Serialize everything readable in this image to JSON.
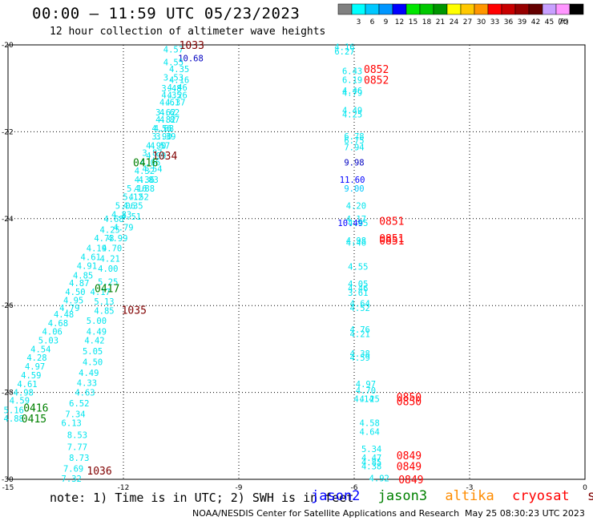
{
  "title": "00:00 – 11:59 UTC 05/23/2023",
  "subtitle": "12 hour collection of altimeter wave heights",
  "colorbar": {
    "unit": "(ft)",
    "bins": [
      {
        "label": "",
        "color": "#808080"
      },
      {
        "label": "3",
        "color": "#00ffff"
      },
      {
        "label": "6",
        "color": "#00c8ff"
      },
      {
        "label": "9",
        "color": "#0096ff"
      },
      {
        "label": "12",
        "color": "#0000ff"
      },
      {
        "label": "15",
        "color": "#00e600"
      },
      {
        "label": "18",
        "color": "#00c800"
      },
      {
        "label": "21",
        "color": "#009600"
      },
      {
        "label": "24",
        "color": "#ffff00"
      },
      {
        "label": "27",
        "color": "#ffc800"
      },
      {
        "label": "30",
        "color": "#ff9600"
      },
      {
        "label": "33",
        "color": "#ff0000"
      },
      {
        "label": "36",
        "color": "#c80000"
      },
      {
        "label": "39",
        "color": "#960000"
      },
      {
        "label": "42",
        "color": "#640000"
      },
      {
        "label": "45",
        "color": "#c8a0ff"
      },
      {
        "label": "70",
        "color": "#ff96ff"
      },
      {
        "label": "",
        "color": "#000000"
      }
    ]
  },
  "axes": {
    "x_ticks": [
      "-15",
      "-12",
      "-9",
      "-6",
      "-3",
      "0"
    ],
    "y_ticks": [
      "-20",
      "-22",
      "-24",
      "-26",
      "-28",
      "-30"
    ],
    "xlim": [
      -15,
      0
    ],
    "ylim": [
      -30,
      -20
    ]
  },
  "note": "note: 1) Time is in UTC; 2) SWH is in feet",
  "satellites": [
    {
      "name": "jason2",
      "color": "#0000ff"
    },
    {
      "name": "jason3",
      "color": "#008000"
    },
    {
      "name": "altika",
      "color": "#ff8c00"
    },
    {
      "name": "cryosat",
      "color": "#ff0000"
    },
    {
      "name": "s3a",
      "color": "#800000"
    }
  ],
  "footer_left": "NOAA/NESDIS Center for Satellite Applications and Research",
  "footer_right": "May 25 08:30:23 UTC 2023",
  "chart_data": {
    "type": "scatter",
    "xlim": [
      -15,
      0
    ],
    "ylim": [
      -30,
      -20
    ],
    "grid": true,
    "points": [
      {
        "x": -10.7,
        "y": -20.1,
        "text": "4.57",
        "color": "#00e5ee"
      },
      {
        "x": -10.25,
        "y": -20.3,
        "text": "10.68",
        "color": "#0000c0"
      },
      {
        "x": -10.7,
        "y": -20.4,
        "text": "4.55",
        "color": "#00e5ee"
      },
      {
        "x": -10.55,
        "y": -20.55,
        "text": "4.35",
        "color": "#00e5ee"
      },
      {
        "x": -10.7,
        "y": -20.75,
        "text": "3.53",
        "color": "#00e5ee"
      },
      {
        "x": -10.55,
        "y": -20.8,
        "text": "4.16",
        "color": "#00e5ee"
      },
      {
        "x": -10.75,
        "y": -21.0,
        "text": "3.48",
        "color": "#00e5ee"
      },
      {
        "x": -10.6,
        "y": -20.98,
        "text": "4.46",
        "color": "#00e5ee"
      },
      {
        "x": -10.75,
        "y": -21.15,
        "text": "4.35",
        "color": "#00e5ee"
      },
      {
        "x": -10.6,
        "y": -21.15,
        "text": "4.26",
        "color": "#00e5ee"
      },
      {
        "x": -10.8,
        "y": -21.32,
        "text": "4.61",
        "color": "#00e5ee"
      },
      {
        "x": -10.65,
        "y": -21.32,
        "text": "4.37",
        "color": "#00e5ee"
      },
      {
        "x": -10.9,
        "y": -21.55,
        "text": "3.62",
        "color": "#00e5ee"
      },
      {
        "x": -10.8,
        "y": -21.55,
        "text": "4.62",
        "color": "#00e5ee"
      },
      {
        "x": -10.9,
        "y": -21.72,
        "text": "4.82",
        "color": "#00e5ee"
      },
      {
        "x": -10.8,
        "y": -21.72,
        "text": "4.87",
        "color": "#00e5ee"
      },
      {
        "x": -11.0,
        "y": -21.92,
        "text": "4.56",
        "color": "#00e5ee"
      },
      {
        "x": -10.95,
        "y": -21.92,
        "text": "4.68",
        "color": "#00e5ee"
      },
      {
        "x": -11.0,
        "y": -22.1,
        "text": "3.90",
        "color": "#00e5ee"
      },
      {
        "x": -10.9,
        "y": -22.1,
        "text": "3.39",
        "color": "#00e5ee"
      },
      {
        "x": -11.15,
        "y": -22.32,
        "text": "4.90",
        "color": "#00e5ee"
      },
      {
        "x": -11.05,
        "y": -22.32,
        "text": "4.57",
        "color": "#00e5ee"
      },
      {
        "x": -11.25,
        "y": -22.48,
        "text": "3.87",
        "color": "#00e5ee"
      },
      {
        "x": -11.15,
        "y": -22.55,
        "text": "4.99",
        "color": "#00e5ee"
      },
      {
        "x": -11.3,
        "y": -22.7,
        "text": "4.06",
        "color": "#00e5ee"
      },
      {
        "x": -11.25,
        "y": -22.85,
        "text": "4.54",
        "color": "#00e5ee"
      },
      {
        "x": -11.45,
        "y": -22.9,
        "text": "4.32",
        "color": "#00e5ee"
      },
      {
        "x": -11.45,
        "y": -23.1,
        "text": "4.36",
        "color": "#00e5ee"
      },
      {
        "x": -11.35,
        "y": -23.1,
        "text": "4.83",
        "color": "#00e5ee"
      },
      {
        "x": -11.65,
        "y": -23.3,
        "text": "5.16",
        "color": "#00e5ee"
      },
      {
        "x": -11.45,
        "y": -23.3,
        "text": "4.88",
        "color": "#00e5ee"
      },
      {
        "x": -11.75,
        "y": -23.5,
        "text": "5.12",
        "color": "#00e5ee"
      },
      {
        "x": -11.6,
        "y": -23.5,
        "text": "4.52",
        "color": "#00e5ee"
      },
      {
        "x": -11.95,
        "y": -23.7,
        "text": "5.06",
        "color": "#00e5ee"
      },
      {
        "x": -11.75,
        "y": -23.7,
        "text": "4.35",
        "color": "#00e5ee"
      },
      {
        "x": -12.05,
        "y": -23.9,
        "text": "4.83",
        "color": "#00e5ee"
      },
      {
        "x": -11.8,
        "y": -23.95,
        "text": "4.51",
        "color": "#00e5ee"
      },
      {
        "x": -12.25,
        "y": -24.0,
        "text": "4.68",
        "color": "#00e5ee"
      },
      {
        "x": -12.35,
        "y": -24.25,
        "text": "4.25",
        "color": "#00e5ee"
      },
      {
        "x": -12.0,
        "y": -24.2,
        "text": "4.79",
        "color": "#00e5ee"
      },
      {
        "x": -12.5,
        "y": -24.45,
        "text": "4.73",
        "color": "#00e5ee"
      },
      {
        "x": -12.15,
        "y": -24.45,
        "text": "4.99",
        "color": "#00e5ee"
      },
      {
        "x": -12.7,
        "y": -24.68,
        "text": "4.19",
        "color": "#00e5ee"
      },
      {
        "x": -12.3,
        "y": -24.68,
        "text": "4.70",
        "color": "#00e5ee"
      },
      {
        "x": -12.85,
        "y": -24.88,
        "text": "4.61",
        "color": "#00e5ee"
      },
      {
        "x": -12.35,
        "y": -24.92,
        "text": "4.21",
        "color": "#00e5ee"
      },
      {
        "x": -12.95,
        "y": -25.08,
        "text": "4.91",
        "color": "#00e5ee"
      },
      {
        "x": -12.4,
        "y": -25.15,
        "text": "4.00",
        "color": "#00e5ee"
      },
      {
        "x": -13.05,
        "y": -25.3,
        "text": "4.85",
        "color": "#00e5ee"
      },
      {
        "x": -12.4,
        "y": -25.45,
        "text": "5.25",
        "color": "#00e5ee"
      },
      {
        "x": -13.15,
        "y": -25.48,
        "text": "4.87",
        "color": "#00e5ee"
      },
      {
        "x": -13.25,
        "y": -25.68,
        "text": "4.50",
        "color": "#00e5ee"
      },
      {
        "x": -12.6,
        "y": -25.68,
        "text": "4.17",
        "color": "#00e5ee"
      },
      {
        "x": -13.3,
        "y": -25.88,
        "text": "4.95",
        "color": "#00e5ee"
      },
      {
        "x": -12.5,
        "y": -25.9,
        "text": "5.13",
        "color": "#00e5ee"
      },
      {
        "x": -13.4,
        "y": -26.05,
        "text": "4.79",
        "color": "#00e5ee"
      },
      {
        "x": -12.5,
        "y": -26.12,
        "text": "4.85",
        "color": "#00e5ee"
      },
      {
        "x": -13.55,
        "y": -26.2,
        "text": "4.48",
        "color": "#00e5ee"
      },
      {
        "x": -12.7,
        "y": -26.35,
        "text": "5.00",
        "color": "#00e5ee"
      },
      {
        "x": -13.7,
        "y": -26.4,
        "text": "4.68",
        "color": "#00e5ee"
      },
      {
        "x": -13.85,
        "y": -26.6,
        "text": "4.06",
        "color": "#00e5ee"
      },
      {
        "x": -12.7,
        "y": -26.6,
        "text": "4.49",
        "color": "#00e5ee"
      },
      {
        "x": -13.95,
        "y": -26.8,
        "text": "5.03",
        "color": "#00e5ee"
      },
      {
        "x": -12.75,
        "y": -26.8,
        "text": "4.42",
        "color": "#00e5ee"
      },
      {
        "x": -14.15,
        "y": -27.0,
        "text": "4.54",
        "color": "#00e5ee"
      },
      {
        "x": -12.8,
        "y": -27.05,
        "text": "5.05",
        "color": "#00e5ee"
      },
      {
        "x": -14.25,
        "y": -27.2,
        "text": "4.28",
        "color": "#00e5ee"
      },
      {
        "x": -12.8,
        "y": -27.3,
        "text": "4.50",
        "color": "#00e5ee"
      },
      {
        "x": -14.3,
        "y": -27.4,
        "text": "4.97",
        "color": "#00e5ee"
      },
      {
        "x": -12.9,
        "y": -27.55,
        "text": "4.49",
        "color": "#00e5ee"
      },
      {
        "x": -14.4,
        "y": -27.6,
        "text": "4.59",
        "color": "#00e5ee"
      },
      {
        "x": -12.95,
        "y": -27.78,
        "text": "4.33",
        "color": "#00e5ee"
      },
      {
        "x": -14.5,
        "y": -27.8,
        "text": "4.61",
        "color": "#00e5ee"
      },
      {
        "x": -14.6,
        "y": -28.0,
        "text": "4.98",
        "color": "#00e5ee"
      },
      {
        "x": -13.0,
        "y": -28.0,
        "text": "4.63",
        "color": "#00e5ee"
      },
      {
        "x": -14.7,
        "y": -28.18,
        "text": "4.59",
        "color": "#00e5ee"
      },
      {
        "x": -13.15,
        "y": -28.25,
        "text": "6.52",
        "color": "#00e5ee"
      },
      {
        "x": -14.85,
        "y": -28.4,
        "text": "5.16",
        "color": "#00e5ee"
      },
      {
        "x": -13.25,
        "y": -28.5,
        "text": "7.34",
        "color": "#00e5ee"
      },
      {
        "x": -14.85,
        "y": -28.6,
        "text": "4.88",
        "color": "#00e5ee"
      },
      {
        "x": -13.35,
        "y": -28.7,
        "text": "6.13",
        "color": "#00e5ee"
      },
      {
        "x": -13.2,
        "y": -28.98,
        "text": "8.53",
        "color": "#00e5ee"
      },
      {
        "x": -13.2,
        "y": -29.25,
        "text": "7.77",
        "color": "#00e5ee"
      },
      {
        "x": -13.15,
        "y": -29.5,
        "text": "8.73",
        "color": "#00e5ee"
      },
      {
        "x": -13.3,
        "y": -29.75,
        "text": "7.69",
        "color": "#00e5ee"
      },
      {
        "x": -13.35,
        "y": -29.98,
        "text": "7.32",
        "color": "#00e5ee"
      },
      {
        "x": -6.25,
        "y": -20.05,
        "text": "4.16",
        "color": "#00e5ee"
      },
      {
        "x": -6.25,
        "y": -20.15,
        "text": "6.27",
        "color": "#00e5ee"
      },
      {
        "x": -6.05,
        "y": -20.6,
        "text": "6.43",
        "color": "#00e5ee"
      },
      {
        "x": -6.05,
        "y": -20.8,
        "text": "6.19",
        "color": "#00e5ee"
      },
      {
        "x": -6.05,
        "y": -21.05,
        "text": "4.46",
        "color": "#00e5ee"
      },
      {
        "x": -6.05,
        "y": -21.1,
        "text": "4.79",
        "color": "#00e5ee"
      },
      {
        "x": -6.05,
        "y": -21.5,
        "text": "4.49",
        "color": "#00e5ee"
      },
      {
        "x": -6.05,
        "y": -21.6,
        "text": "4.25",
        "color": "#00e5ee"
      },
      {
        "x": -6.0,
        "y": -22.1,
        "text": "6.78",
        "color": "#00e5ee"
      },
      {
        "x": -6.0,
        "y": -22.2,
        "text": "6.75",
        "color": "#00e5ee"
      },
      {
        "x": -6.0,
        "y": -22.35,
        "text": "7.94",
        "color": "#00e5ee"
      },
      {
        "x": -6.0,
        "y": -22.7,
        "text": "9.98",
        "color": "#0000c0"
      },
      {
        "x": -6.05,
        "y": -23.1,
        "text": "11.60",
        "color": "#0000ff"
      },
      {
        "x": -6.0,
        "y": -23.3,
        "text": "9.00",
        "color": "#00c8ff"
      },
      {
        "x": -5.95,
        "y": -23.7,
        "text": "4.20",
        "color": "#00e5ee"
      },
      {
        "x": -5.95,
        "y": -24.0,
        "text": "4.17",
        "color": "#00e5ee"
      },
      {
        "x": -6.1,
        "y": -24.1,
        "text": "10.49",
        "color": "#0000ff"
      },
      {
        "x": -5.9,
        "y": -24.1,
        "text": "4.45",
        "color": "#00e5ee"
      },
      {
        "x": -5.95,
        "y": -24.5,
        "text": "4.98",
        "color": "#00e5ee"
      },
      {
        "x": -5.95,
        "y": -24.55,
        "text": "4.46",
        "color": "#00e5ee"
      },
      {
        "x": -5.9,
        "y": -25.1,
        "text": "4.55",
        "color": "#00e5ee"
      },
      {
        "x": -5.9,
        "y": -25.5,
        "text": "4.05",
        "color": "#00e5ee"
      },
      {
        "x": -5.9,
        "y": -25.6,
        "text": "4.46",
        "color": "#00e5ee"
      },
      {
        "x": -5.9,
        "y": -25.7,
        "text": "3.61",
        "color": "#00e5ee"
      },
      {
        "x": -5.85,
        "y": -25.95,
        "text": "4.64",
        "color": "#00e5ee"
      },
      {
        "x": -5.85,
        "y": -26.05,
        "text": "4.52",
        "color": "#00e5ee"
      },
      {
        "x": -5.85,
        "y": -26.55,
        "text": "4.76",
        "color": "#00e5ee"
      },
      {
        "x": -5.85,
        "y": -26.65,
        "text": "4.21",
        "color": "#00e5ee"
      },
      {
        "x": -5.85,
        "y": -27.1,
        "text": "4.38",
        "color": "#00e5ee"
      },
      {
        "x": -5.85,
        "y": -27.2,
        "text": "4.59",
        "color": "#00e5ee"
      },
      {
        "x": -5.7,
        "y": -27.8,
        "text": "4.97",
        "color": "#00e5ee"
      },
      {
        "x": -5.7,
        "y": -27.95,
        "text": "4.70",
        "color": "#00e5ee"
      },
      {
        "x": -5.75,
        "y": -28.15,
        "text": "4.14",
        "color": "#00e5ee"
      },
      {
        "x": -5.6,
        "y": -28.15,
        "text": "4.25",
        "color": "#00e5ee"
      },
      {
        "x": -5.6,
        "y": -28.7,
        "text": "4.58",
        "color": "#00e5ee"
      },
      {
        "x": -5.6,
        "y": -28.9,
        "text": "4.64",
        "color": "#00e5ee"
      },
      {
        "x": -5.55,
        "y": -29.3,
        "text": "5.34",
        "color": "#00e5ee"
      },
      {
        "x": -5.55,
        "y": -29.5,
        "text": "4.47",
        "color": "#00e5ee"
      },
      {
        "x": -5.55,
        "y": -29.6,
        "text": "4.85",
        "color": "#00e5ee"
      },
      {
        "x": -5.55,
        "y": -29.7,
        "text": "4.38",
        "color": "#00e5ee"
      },
      {
        "x": -5.35,
        "y": -29.97,
        "text": "4.92",
        "color": "#00e5ee"
      }
    ],
    "passes": [
      {
        "x": -10.55,
        "y": -20.0,
        "text": "1033",
        "color": "#800000"
      },
      {
        "x": -11.25,
        "y": -22.55,
        "text": "1034",
        "color": "#800000"
      },
      {
        "x": -11.75,
        "y": -22.7,
        "text": "0416",
        "color": "#008000"
      },
      {
        "x": -12.75,
        "y": -25.6,
        "text": "0417",
        "color": "#008000"
      },
      {
        "x": -12.05,
        "y": -26.1,
        "text": "1035",
        "color": "#800000"
      },
      {
        "x": -14.6,
        "y": -28.35,
        "text": "0416",
        "color": "#008000"
      },
      {
        "x": -14.65,
        "y": -28.6,
        "text": "0415",
        "color": "#008000"
      },
      {
        "x": -12.95,
        "y": -29.8,
        "text": "1036",
        "color": "#800000"
      },
      {
        "x": -5.75,
        "y": -20.55,
        "text": "0852",
        "color": "#ff0000"
      },
      {
        "x": -5.75,
        "y": -20.8,
        "text": "0852",
        "color": "#ff0000"
      },
      {
        "x": -5.35,
        "y": -24.05,
        "text": "0851",
        "color": "#ff0000"
      },
      {
        "x": -5.35,
        "y": -24.45,
        "text": "0851",
        "color": "#ff0000"
      },
      {
        "x": -5.35,
        "y": -24.5,
        "text": "0851",
        "color": "#ff0000"
      },
      {
        "x": -4.9,
        "y": -28.1,
        "text": "0850",
        "color": "#ff0000"
      },
      {
        "x": -4.9,
        "y": -28.2,
        "text": "0850",
        "color": "#ff0000"
      },
      {
        "x": -4.9,
        "y": -29.45,
        "text": "0849",
        "color": "#ff0000"
      },
      {
        "x": -4.9,
        "y": -29.7,
        "text": "0849",
        "color": "#ff0000"
      },
      {
        "x": -4.85,
        "y": -30.0,
        "text": "0849",
        "color": "#ff0000"
      }
    ]
  }
}
